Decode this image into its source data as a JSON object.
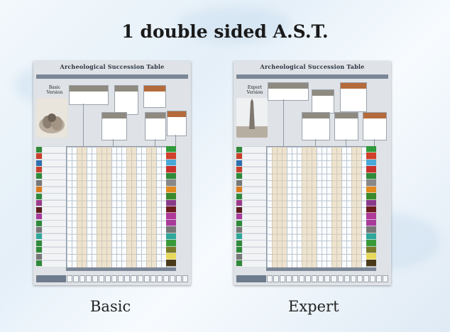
{
  "heading": "1 double sided A.S.T.",
  "boards": [
    {
      "caption": "Basic",
      "table_title": "Archeological Succession Table",
      "version_label": "Basic Version"
    },
    {
      "caption": "Expert",
      "table_title": "Archeological Succession Table",
      "version_label": "Expert Version"
    }
  ],
  "row_colors": [
    "#2f8a3a",
    "#c8402a",
    "#2e6fb0",
    "#c8402a",
    "#2f8a3a",
    "#777777",
    "#d97a1f",
    "#2f8a3a",
    "#9a3a8a",
    "#5a1c1c",
    "#a83a9a",
    "#2f8a3a",
    "#777777",
    "#2fa89a",
    "#2f8a3a",
    "#2f8a3a",
    "#777777",
    "#2f8a3a"
  ],
  "side_colors": [
    "#2f9a3a",
    "#d0402a",
    "#4aa8d8",
    "#c8302a",
    "#2f8a3a",
    "#888888",
    "#e08a1f",
    "#3a8a2a",
    "#8a3a8a",
    "#6a1c1c",
    "#b03a9a",
    "#a83a9a",
    "#777777",
    "#2fa89a",
    "#3a9a3a",
    "#7a7a2a",
    "#e8d85a",
    "#4a3a1a"
  ]
}
